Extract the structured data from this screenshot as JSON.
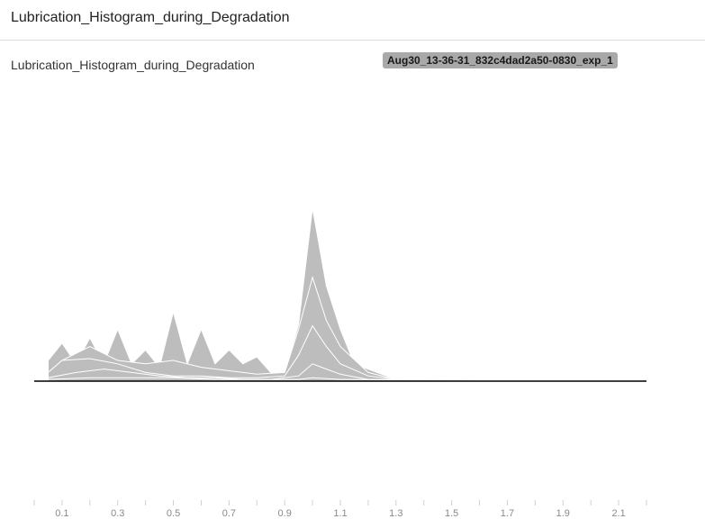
{
  "card": {
    "title": "Lubrication_Histogram_during_Degradation"
  },
  "chart_data": {
    "type": "area",
    "title": "Lubrication_Histogram_during_Degradation",
    "run_label": "Aug30_13-36-31_832c4dad2a50-0830_exp_1",
    "x_ticks": [
      "0.1",
      "0.3",
      "0.5",
      "0.7",
      "0.9",
      "1.1",
      "1.3",
      "1.5",
      "1.7",
      "1.9",
      "2.1"
    ],
    "xlim": [
      0.0,
      2.2
    ],
    "colors": {
      "fill": "#bdbdbd",
      "stroke": "#ffffff",
      "baseline": "#000000",
      "axis": "#cfcfcf"
    },
    "series": [
      {
        "points": [
          [
            0.05,
            0.12
          ],
          [
            0.1,
            0.22
          ],
          [
            0.15,
            0.1
          ],
          [
            0.2,
            0.25
          ],
          [
            0.25,
            0.1
          ],
          [
            0.3,
            0.3
          ],
          [
            0.35,
            0.1
          ],
          [
            0.4,
            0.18
          ],
          [
            0.45,
            0.08
          ],
          [
            0.5,
            0.4
          ],
          [
            0.55,
            0.1
          ],
          [
            0.6,
            0.3
          ],
          [
            0.65,
            0.1
          ],
          [
            0.7,
            0.18
          ],
          [
            0.75,
            0.1
          ],
          [
            0.8,
            0.14
          ],
          [
            0.85,
            0.05
          ],
          [
            0.9,
            0.04
          ],
          [
            0.95,
            0.33
          ],
          [
            1.0,
            1.0
          ],
          [
            1.05,
            0.55
          ],
          [
            1.1,
            0.3
          ],
          [
            1.15,
            0.1
          ],
          [
            1.2,
            0.07
          ],
          [
            1.3,
            0.01
          ],
          [
            1.5,
            0.01
          ],
          [
            1.7,
            0.005
          ],
          [
            1.9,
            0.005
          ],
          [
            2.1,
            0.005
          ],
          [
            2.15,
            0.0
          ]
        ]
      },
      {
        "points": [
          [
            0.05,
            0.05
          ],
          [
            0.1,
            0.12
          ],
          [
            0.2,
            0.2
          ],
          [
            0.3,
            0.12
          ],
          [
            0.4,
            0.1
          ],
          [
            0.5,
            0.12
          ],
          [
            0.6,
            0.08
          ],
          [
            0.7,
            0.06
          ],
          [
            0.8,
            0.04
          ],
          [
            0.9,
            0.05
          ],
          [
            0.95,
            0.3
          ],
          [
            1.0,
            0.6
          ],
          [
            1.05,
            0.35
          ],
          [
            1.1,
            0.2
          ],
          [
            1.2,
            0.05
          ],
          [
            1.3,
            0.01
          ],
          [
            1.5,
            0.005
          ],
          [
            2.15,
            0.0
          ]
        ]
      },
      {
        "points": [
          [
            0.05,
            0.05
          ],
          [
            0.1,
            0.12
          ],
          [
            0.2,
            0.13
          ],
          [
            0.3,
            0.1
          ],
          [
            0.4,
            0.05
          ],
          [
            0.5,
            0.03
          ],
          [
            0.6,
            0.03
          ],
          [
            0.7,
            0.02
          ],
          [
            0.8,
            0.02
          ],
          [
            0.9,
            0.03
          ],
          [
            0.95,
            0.15
          ],
          [
            1.0,
            0.32
          ],
          [
            1.05,
            0.2
          ],
          [
            1.1,
            0.1
          ],
          [
            1.2,
            0.03
          ],
          [
            1.3,
            0.01
          ],
          [
            2.15,
            0.0
          ]
        ]
      },
      {
        "points": [
          [
            0.05,
            0.02
          ],
          [
            0.15,
            0.05
          ],
          [
            0.25,
            0.07
          ],
          [
            0.35,
            0.05
          ],
          [
            0.45,
            0.03
          ],
          [
            0.55,
            0.02
          ],
          [
            0.65,
            0.02
          ],
          [
            0.75,
            0.01
          ],
          [
            0.85,
            0.01
          ],
          [
            0.95,
            0.03
          ],
          [
            1.0,
            0.1
          ],
          [
            1.05,
            0.07
          ],
          [
            1.1,
            0.04
          ],
          [
            1.2,
            0.01
          ],
          [
            2.15,
            0.0
          ]
        ]
      },
      {
        "points": [
          [
            0.05,
            0.01
          ],
          [
            0.2,
            0.02
          ],
          [
            0.35,
            0.02
          ],
          [
            0.5,
            0.02
          ],
          [
            0.65,
            0.01
          ],
          [
            0.8,
            0.01
          ],
          [
            0.95,
            0.01
          ],
          [
            1.0,
            0.02
          ],
          [
            1.1,
            0.01
          ],
          [
            2.15,
            0.0
          ]
        ]
      }
    ]
  }
}
